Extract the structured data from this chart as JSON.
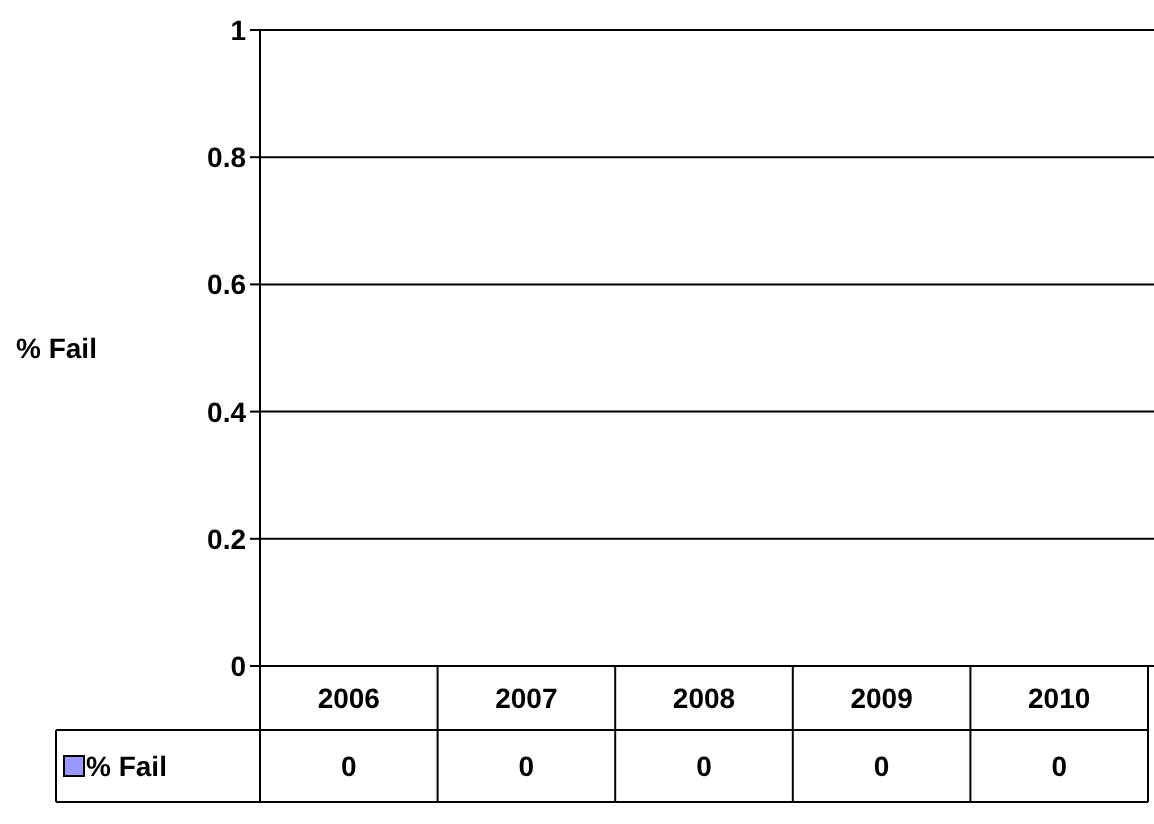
{
  "chart_data": {
    "type": "bar",
    "ylabel": "% Fail",
    "categories": [
      "2006",
      "2007",
      "2008",
      "2009",
      "2010"
    ],
    "series": [
      {
        "name": "% Fail",
        "color": "#9999ff",
        "values": [
          0,
          0,
          0,
          0,
          0
        ]
      }
    ],
    "ylim": [
      0,
      1
    ],
    "yticks": [
      0,
      0.2,
      0.4,
      0.6,
      0.8,
      1
    ],
    "grid": "y",
    "legend": "bottom",
    "data_labels": true
  }
}
